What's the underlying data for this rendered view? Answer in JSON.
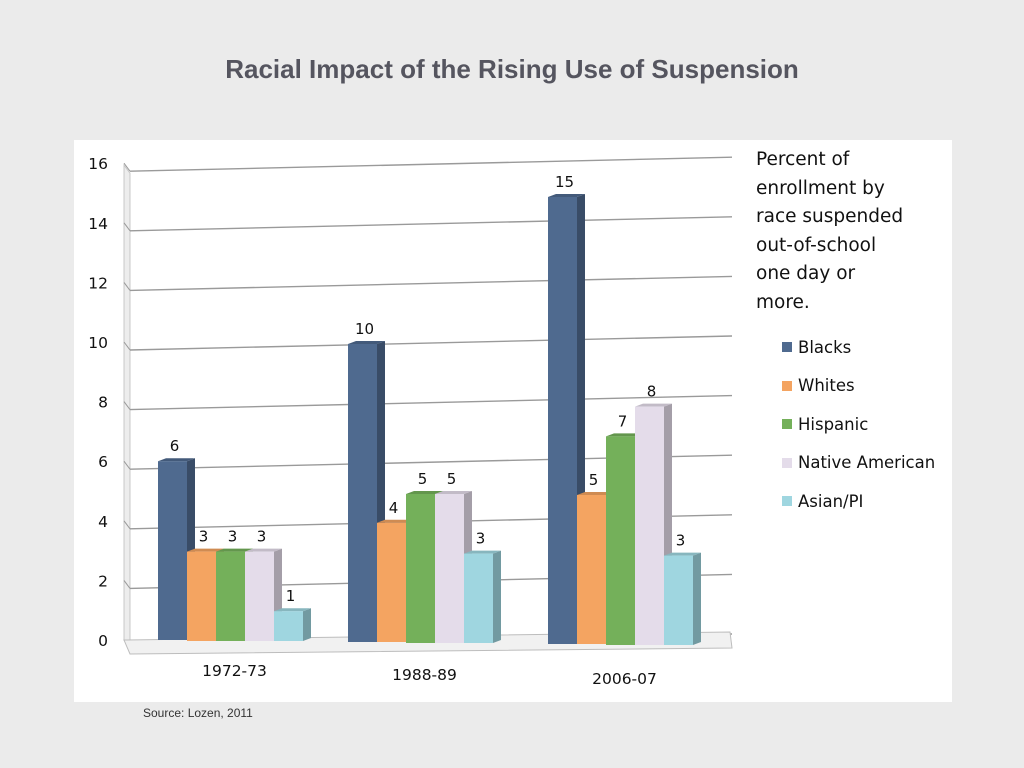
{
  "title": "Racial Impact of the Rising Use of Suspension",
  "source": "Source: Lozen, 2011",
  "legend": {
    "title": "Percent of enrollment by race suspended out-of-school one day or more.",
    "title_lines": [
      "Percent of",
      "enrollment by",
      "race suspended",
      "out-of-school",
      "one day or",
      "more."
    ],
    "items": [
      {
        "label": "Blacks",
        "color": "#4f6a8f"
      },
      {
        "label": "Whites",
        "color": "#f4a461"
      },
      {
        "label": "Hispanic",
        "color": "#74b05a"
      },
      {
        "label": "Native American",
        "color": "#e4dcea"
      },
      {
        "label": "Asian/PI",
        "color": "#9fd6e0"
      }
    ]
  },
  "chart_data": {
    "type": "bar",
    "categories": [
      "1972-73",
      "1988-89",
      "2006-07"
    ],
    "series": [
      {
        "name": "Blacks",
        "values": [
          6,
          10,
          15
        ]
      },
      {
        "name": "Whites",
        "values": [
          3,
          4,
          5
        ]
      },
      {
        "name": "Hispanic",
        "values": [
          3,
          5,
          7
        ]
      },
      {
        "name": "Native American",
        "values": [
          3,
          5,
          8
        ]
      },
      {
        "name": "Asian/PI",
        "values": [
          1,
          3,
          3
        ]
      }
    ],
    "data_labels": [
      [
        "6",
        "3",
        "3",
        "3",
        "1"
      ],
      [
        "10",
        "4",
        "5",
        "5",
        "3"
      ],
      [
        "15",
        "5",
        "7",
        "8",
        "3"
      ]
    ],
    "yticks": [
      "0",
      "2",
      "4",
      "6",
      "8",
      "10",
      "12",
      "14",
      "16"
    ],
    "ylim": [
      0,
      16
    ],
    "grid": true,
    "legend_position": "right",
    "style": "3d"
  }
}
